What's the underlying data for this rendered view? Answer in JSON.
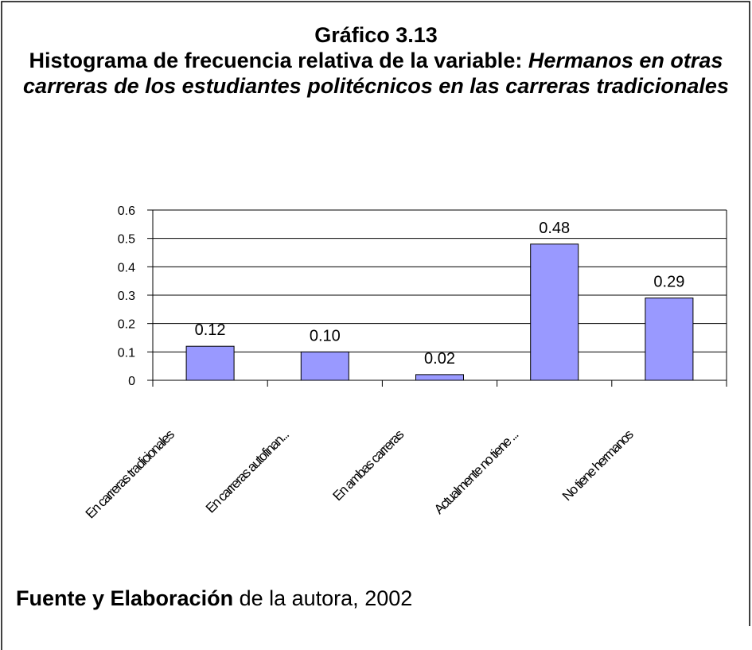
{
  "chart_data": {
    "type": "bar",
    "title": "Gráfico 3.13",
    "subtitle": {
      "lead": "Histograma de frecuencia relativa de la variable:",
      "variable": "Hermanos en otras carreras de los estudiantes politécnicos en las carreras tradicionales"
    },
    "categories": [
      "En carreras tradicionales",
      "En carreras autofinan...",
      "En ambas carreras",
      "Actualmente no tiene ...",
      "No tiene hermanos"
    ],
    "values": [
      0.12,
      0.1,
      0.02,
      0.48,
      0.29
    ],
    "value_labels": [
      "0.12",
      "0.10",
      "0.02",
      "0.48",
      "0.29"
    ],
    "color": "#9999ff",
    "ylim": [
      0,
      0.6
    ],
    "yticks": [
      0,
      0.1,
      0.2,
      0.3,
      0.4,
      0.5,
      0.6
    ],
    "grid": true
  },
  "source": {
    "bold": "Fuente y Elaboración",
    "text": "de la autora, 2002"
  }
}
